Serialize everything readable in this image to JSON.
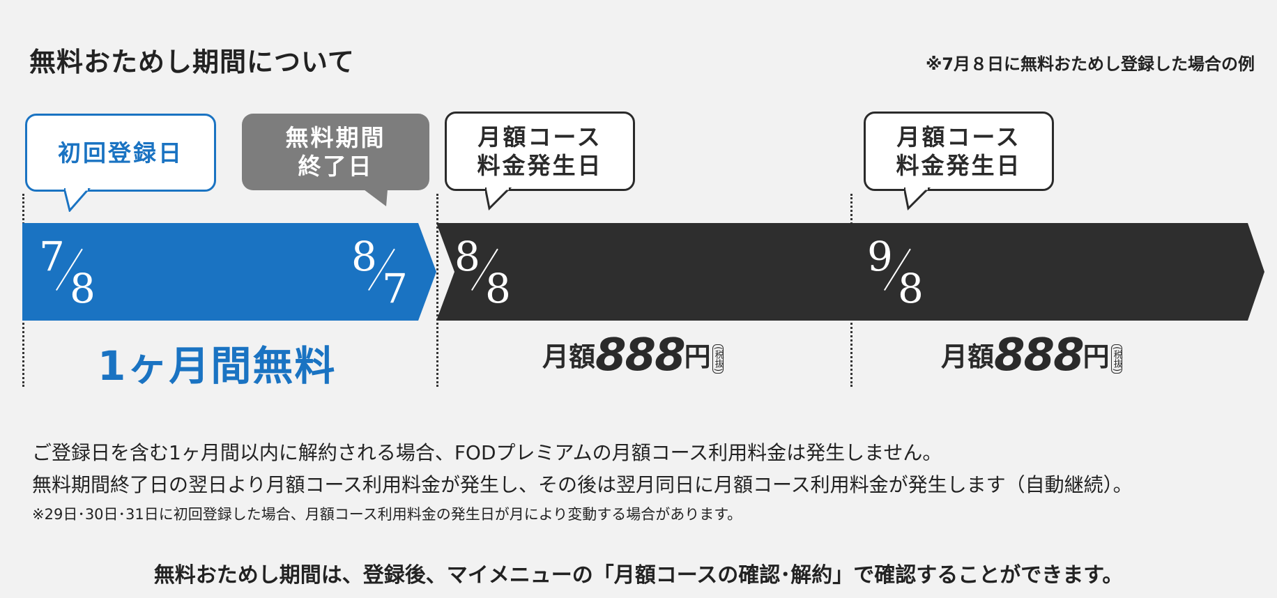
{
  "header": {
    "title": "無料おためし期間について",
    "example_note": "※7月８日に無料おためし登録した場合の例"
  },
  "timeline": {
    "bubbles": {
      "first_registration": [
        "初回登録日"
      ],
      "trial_end": [
        "無料期間",
        "終了日"
      ],
      "billing_1": [
        "月額コース",
        "料金発生日"
      ],
      "billing_2": [
        "月額コース",
        "料金発生日"
      ]
    },
    "dates": {
      "start": {
        "month": "7",
        "day": "8"
      },
      "trial_end": {
        "month": "8",
        "day": "7"
      },
      "billing_1": {
        "month": "8",
        "day": "8"
      },
      "billing_2": {
        "month": "9",
        "day": "8"
      }
    },
    "free_label": "1ヶ月間無料",
    "price_1": {
      "prefix": "月額",
      "amount": "888",
      "suffix": "円",
      "tax": "(税抜)"
    },
    "price_2": {
      "prefix": "月額",
      "amount": "888",
      "suffix": "円",
      "tax": "(税抜)"
    },
    "colors": {
      "blue": "#1a73c2",
      "dark": "#2e2e2e",
      "gray": "#7d7d7d"
    }
  },
  "description": {
    "line1": "ご登録日を含む1ヶ月間以内に解約される場合、FODプレミアムの月額コース利用料金は発生しません。",
    "line2": "無料期間終了日の翌日より月額コース利用料金が発生し、その後は翌月同日に月額コース利用料金が発生します（自動継続）。",
    "note": "※29日･30日･31日に初回登録した場合、月額コース利用料金の発生日が月により変動する場合があります。"
  },
  "bottom_note": "無料おためし期間は、登録後、マイメニューの「月額コースの確認･解約」で確認することができます。"
}
